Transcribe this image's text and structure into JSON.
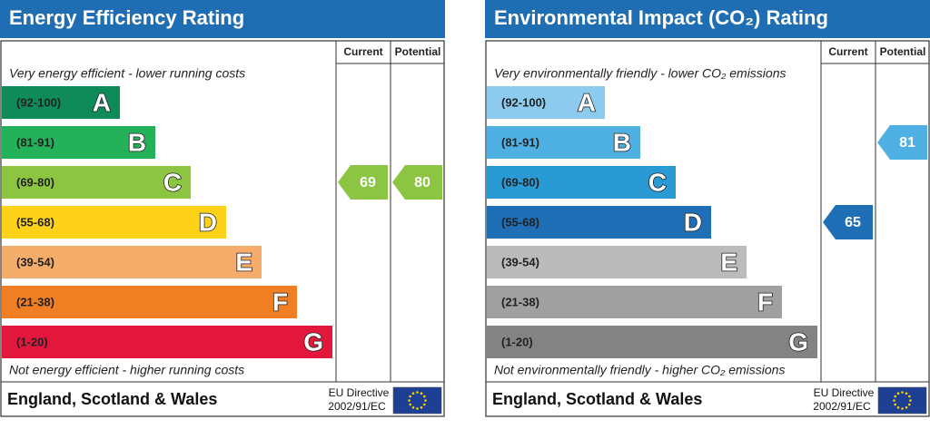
{
  "chart_data": [
    {
      "type": "rating",
      "title": "Energy Efficiency Rating",
      "columns": [
        "Current",
        "Potential"
      ],
      "top_note": "Very energy efficient - lower running costs",
      "bottom_note": "Not energy efficient - higher running costs",
      "bands": [
        {
          "range": "(92-100)",
          "letter": "A",
          "color": "#0f8a59"
        },
        {
          "range": "(81-91)",
          "letter": "B",
          "color": "#23b25a"
        },
        {
          "range": "(69-80)",
          "letter": "C",
          "color": "#8cc541"
        },
        {
          "range": "(55-68)",
          "letter": "D",
          "color": "#ffd21a"
        },
        {
          "range": "(39-54)",
          "letter": "E",
          "color": "#f6ad6b"
        },
        {
          "range": "(21-38)",
          "letter": "F",
          "color": "#ef7f22"
        },
        {
          "range": "(1-20)",
          "letter": "G",
          "color": "#e2173b"
        }
      ],
      "current": 69,
      "potential": 80,
      "region": "England, Scotland & Wales",
      "directive": [
        "EU Directive",
        "2002/91/EC"
      ]
    },
    {
      "type": "rating",
      "title": "Environmental Impact (CO₂) Rating",
      "columns": [
        "Current",
        "Potential"
      ],
      "top_note": "Very environmentally friendly - lower CO₂ emissions",
      "bottom_note": "Not environmentally friendly - higher CO₂ emissions",
      "bands": [
        {
          "range": "(92-100)",
          "letter": "A",
          "color": "#8ccbee"
        },
        {
          "range": "(81-91)",
          "letter": "B",
          "color": "#4fb0e3"
        },
        {
          "range": "(69-80)",
          "letter": "C",
          "color": "#2a9ad5"
        },
        {
          "range": "(55-68)",
          "letter": "D",
          "color": "#1e6fb6"
        },
        {
          "range": "(39-54)",
          "letter": "E",
          "color": "#bbbbbb"
        },
        {
          "range": "(21-38)",
          "letter": "F",
          "color": "#a0a0a0"
        },
        {
          "range": "(1-20)",
          "letter": "G",
          "color": "#838383"
        }
      ],
      "current": 65,
      "potential": 81,
      "region": "England, Scotland & Wales",
      "directive": [
        "EU Directive",
        "2002/91/EC"
      ]
    }
  ]
}
